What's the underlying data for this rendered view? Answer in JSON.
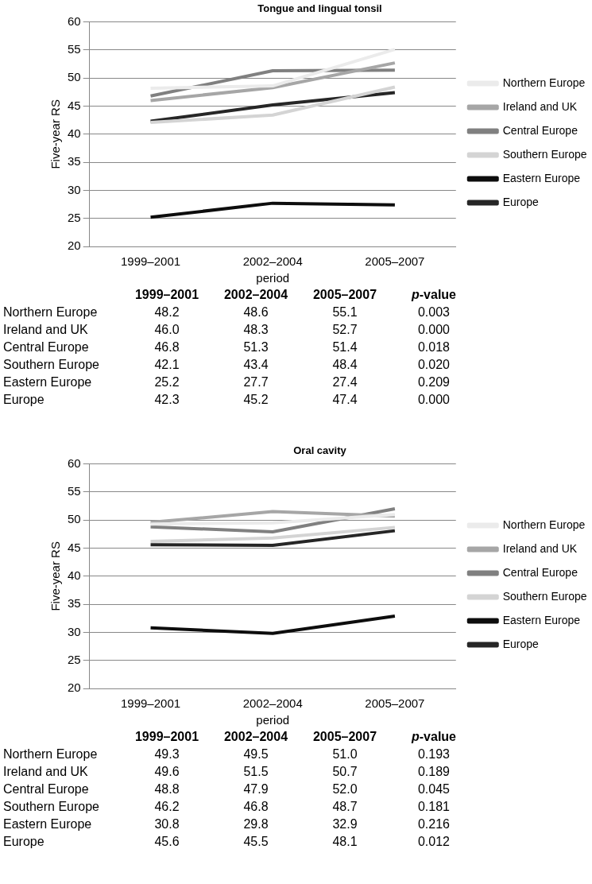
{
  "chart_data": [
    {
      "type": "line",
      "title": "Tongue and lingual tonsil",
      "xlabel": "period",
      "ylabel": "Five-year RS",
      "categories": [
        "1999–2001",
        "2002–2004",
        "2005–2007"
      ],
      "ylim": [
        20,
        60
      ],
      "yticks": [
        20,
        25,
        30,
        35,
        40,
        45,
        50,
        55,
        60
      ],
      "grid": "y",
      "legend": "right",
      "marker": "none",
      "line_style": "solid",
      "annotations": [
        "p-value",
        "0.003",
        "0.000",
        "0.018",
        "0.020",
        "0.209",
        "0.000"
      ],
      "series": [
        {
          "name": "Northern Europe",
          "color": "#ebebeb",
          "values": [
            48.2,
            48.6,
            55.1
          ],
          "value_labels": [
            "48.2",
            "48.6",
            "55.1"
          ]
        },
        {
          "name": "Ireland and UK",
          "color": "#a6a6a6",
          "values": [
            46.0,
            48.3,
            52.7
          ],
          "value_labels": [
            "46.0",
            "48.3",
            "52.7"
          ]
        },
        {
          "name": "Central Europe",
          "color": "#808080",
          "values": [
            46.8,
            51.3,
            51.4
          ],
          "value_labels": [
            "46.8",
            "51.3",
            "51.4"
          ]
        },
        {
          "name": "Southern Europe",
          "color": "#d4d4d4",
          "values": [
            42.1,
            43.4,
            48.4
          ],
          "value_labels": [
            "42.1",
            "43.4",
            "48.4"
          ]
        },
        {
          "name": "Eastern Europe",
          "color": "#0d0d0d",
          "values": [
            25.2,
            27.7,
            27.4
          ],
          "value_labels": [
            "25.2",
            "27.7",
            "27.4"
          ]
        },
        {
          "name": "Europe",
          "color": "#262626",
          "values": [
            42.3,
            45.2,
            47.4
          ],
          "value_labels": [
            "42.3",
            "45.2",
            "47.4"
          ]
        }
      ]
    },
    {
      "type": "line",
      "title": "Oral cavity",
      "xlabel": "period",
      "ylabel": "Five-year RS",
      "categories": [
        "1999–2001",
        "2002–2004",
        "2005–2007"
      ],
      "ylim": [
        20,
        60
      ],
      "yticks": [
        20,
        25,
        30,
        35,
        40,
        45,
        50,
        55,
        60
      ],
      "grid": "y",
      "legend": "right",
      "marker": "none",
      "line_style": "solid",
      "annotations": [
        "p-value",
        "0.193",
        "0.189",
        "0.045",
        "0.181",
        "0.216",
        "0.012"
      ],
      "series": [
        {
          "name": "Northern Europe",
          "color": "#ebebeb",
          "values": [
            49.3,
            49.5,
            51.0
          ],
          "value_labels": [
            "49.3",
            "49.5",
            "51.0"
          ]
        },
        {
          "name": "Ireland and UK",
          "color": "#a6a6a6",
          "values": [
            49.6,
            51.5,
            50.7
          ],
          "value_labels": [
            "49.6",
            "51.5",
            "50.7"
          ]
        },
        {
          "name": "Central Europe",
          "color": "#808080",
          "values": [
            48.8,
            47.9,
            52.0
          ],
          "value_labels": [
            "48.8",
            "47.9",
            "52.0"
          ]
        },
        {
          "name": "Southern Europe",
          "color": "#d4d4d4",
          "values": [
            46.2,
            46.8,
            48.7
          ],
          "value_labels": [
            "46.2",
            "46.8",
            "48.7"
          ]
        },
        {
          "name": "Eastern Europe",
          "color": "#0d0d0d",
          "values": [
            30.8,
            29.8,
            32.9
          ],
          "value_labels": [
            "30.8",
            "29.8",
            "32.9"
          ]
        },
        {
          "name": "Europe",
          "color": "#262626",
          "values": [
            45.6,
            45.5,
            48.1
          ],
          "value_labels": [
            "45.6",
            "45.5",
            "48.1"
          ]
        }
      ]
    }
  ]
}
